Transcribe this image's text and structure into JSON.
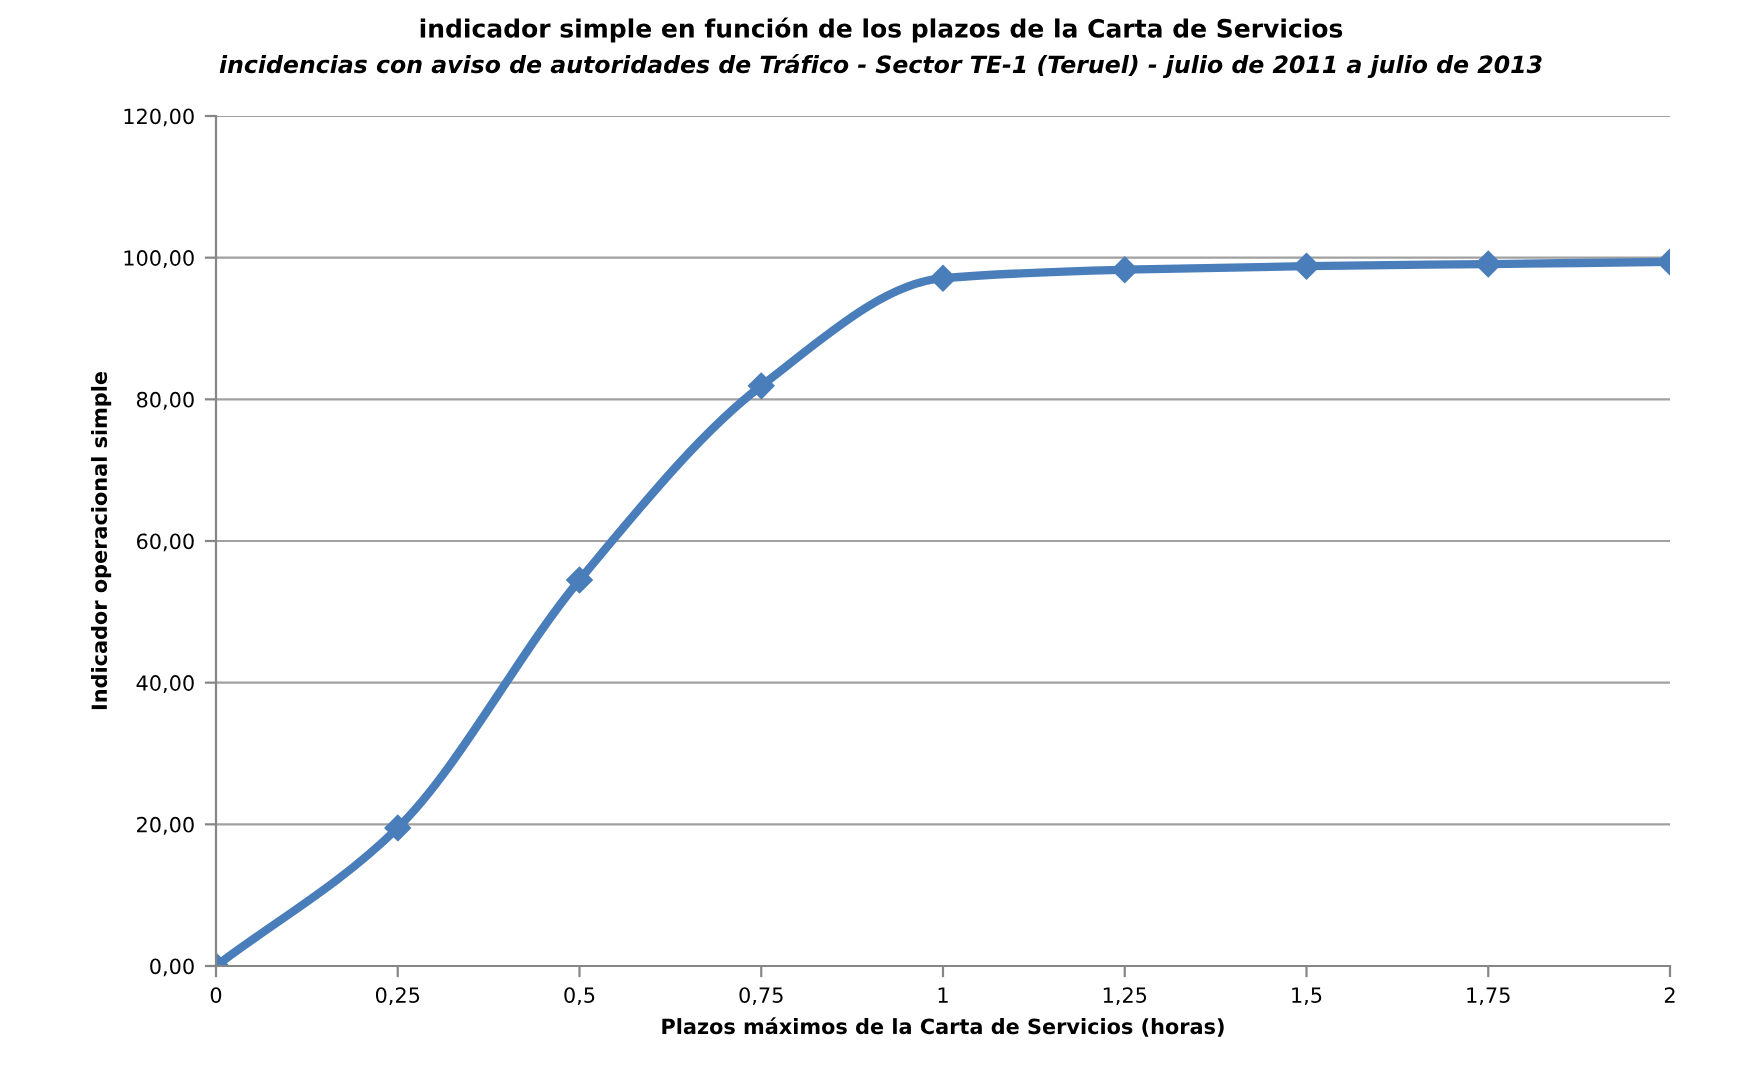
{
  "chart_data": {
    "type": "line",
    "title": "indicador simple en función de los plazos de la Carta de Servicios",
    "subtitle": "incidencias con aviso de autoridades de Tráfico - Sector TE-1 (Teruel) - julio de 2011 a julio de 2013",
    "xlabel": "Plazos máximos de la Carta de Servicios (horas)",
    "ylabel": "Indicador operacional simple",
    "x": [
      0,
      0.25,
      0.5,
      0.75,
      1,
      1.25,
      1.5,
      1.75,
      2
    ],
    "series": [
      {
        "color": "#4a7ebb",
        "values": [
          0,
          19.5,
          54.5,
          81.9,
          97.1,
          98.3,
          98.8,
          99.1,
          99.4
        ]
      }
    ],
    "xlim": [
      0,
      2
    ],
    "ylim": [
      0,
      120
    ],
    "xticks": [
      0,
      {
        "value": 0.25,
        "label": "0,25"
      },
      {
        "value": 0.5,
        "label": "0,5"
      },
      {
        "value": 0.75,
        "label": "0,75"
      },
      1,
      {
        "value": 1.25,
        "label": "1,25"
      },
      {
        "value": 1.5,
        "label": "1,5"
      },
      {
        "value": 1.75,
        "label": "1,75"
      },
      2
    ],
    "yticks": [
      {
        "value": 0,
        "label": "0,00"
      },
      {
        "value": 20,
        "label": "20,00"
      },
      {
        "value": 40,
        "label": "40,00"
      },
      {
        "value": 60,
        "label": "60,00"
      },
      {
        "value": 80,
        "label": "80,00"
      },
      {
        "value": 100,
        "label": "100,00"
      },
      {
        "value": 120,
        "label": "120,00"
      }
    ],
    "grid": "y",
    "marker": "diamond",
    "line_style": "solid"
  }
}
